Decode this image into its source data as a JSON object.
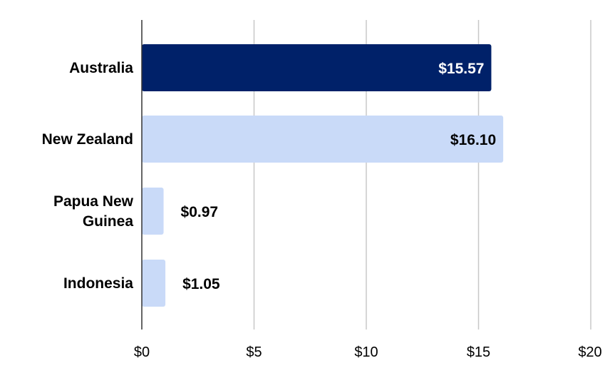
{
  "chart_data": {
    "type": "bar",
    "orientation": "horizontal",
    "title": "",
    "xlabel": "",
    "ylabel": "",
    "categories": [
      [
        "Australia"
      ],
      [
        "New Zealand"
      ],
      [
        "Papua New",
        "Guinea"
      ],
      [
        "Indonesia"
      ]
    ],
    "values": [
      15.57,
      16.1,
      0.97,
      1.05
    ],
    "data_labels": [
      "$15.57",
      "$16.10",
      "$0.97",
      "$1.05"
    ],
    "bar_colors": [
      "#002169",
      "#c9daf8",
      "#c9daf8",
      "#c9daf8"
    ],
    "label_colors": [
      "#ffffff",
      "#000000",
      "#000000",
      "#000000"
    ],
    "xlim": [
      0,
      20
    ],
    "xticks": [
      0,
      5,
      10,
      15,
      20
    ],
    "xtick_labels": [
      "$0",
      "$5",
      "$10",
      "$15",
      "$20"
    ],
    "grid": true,
    "legend": "none"
  }
}
